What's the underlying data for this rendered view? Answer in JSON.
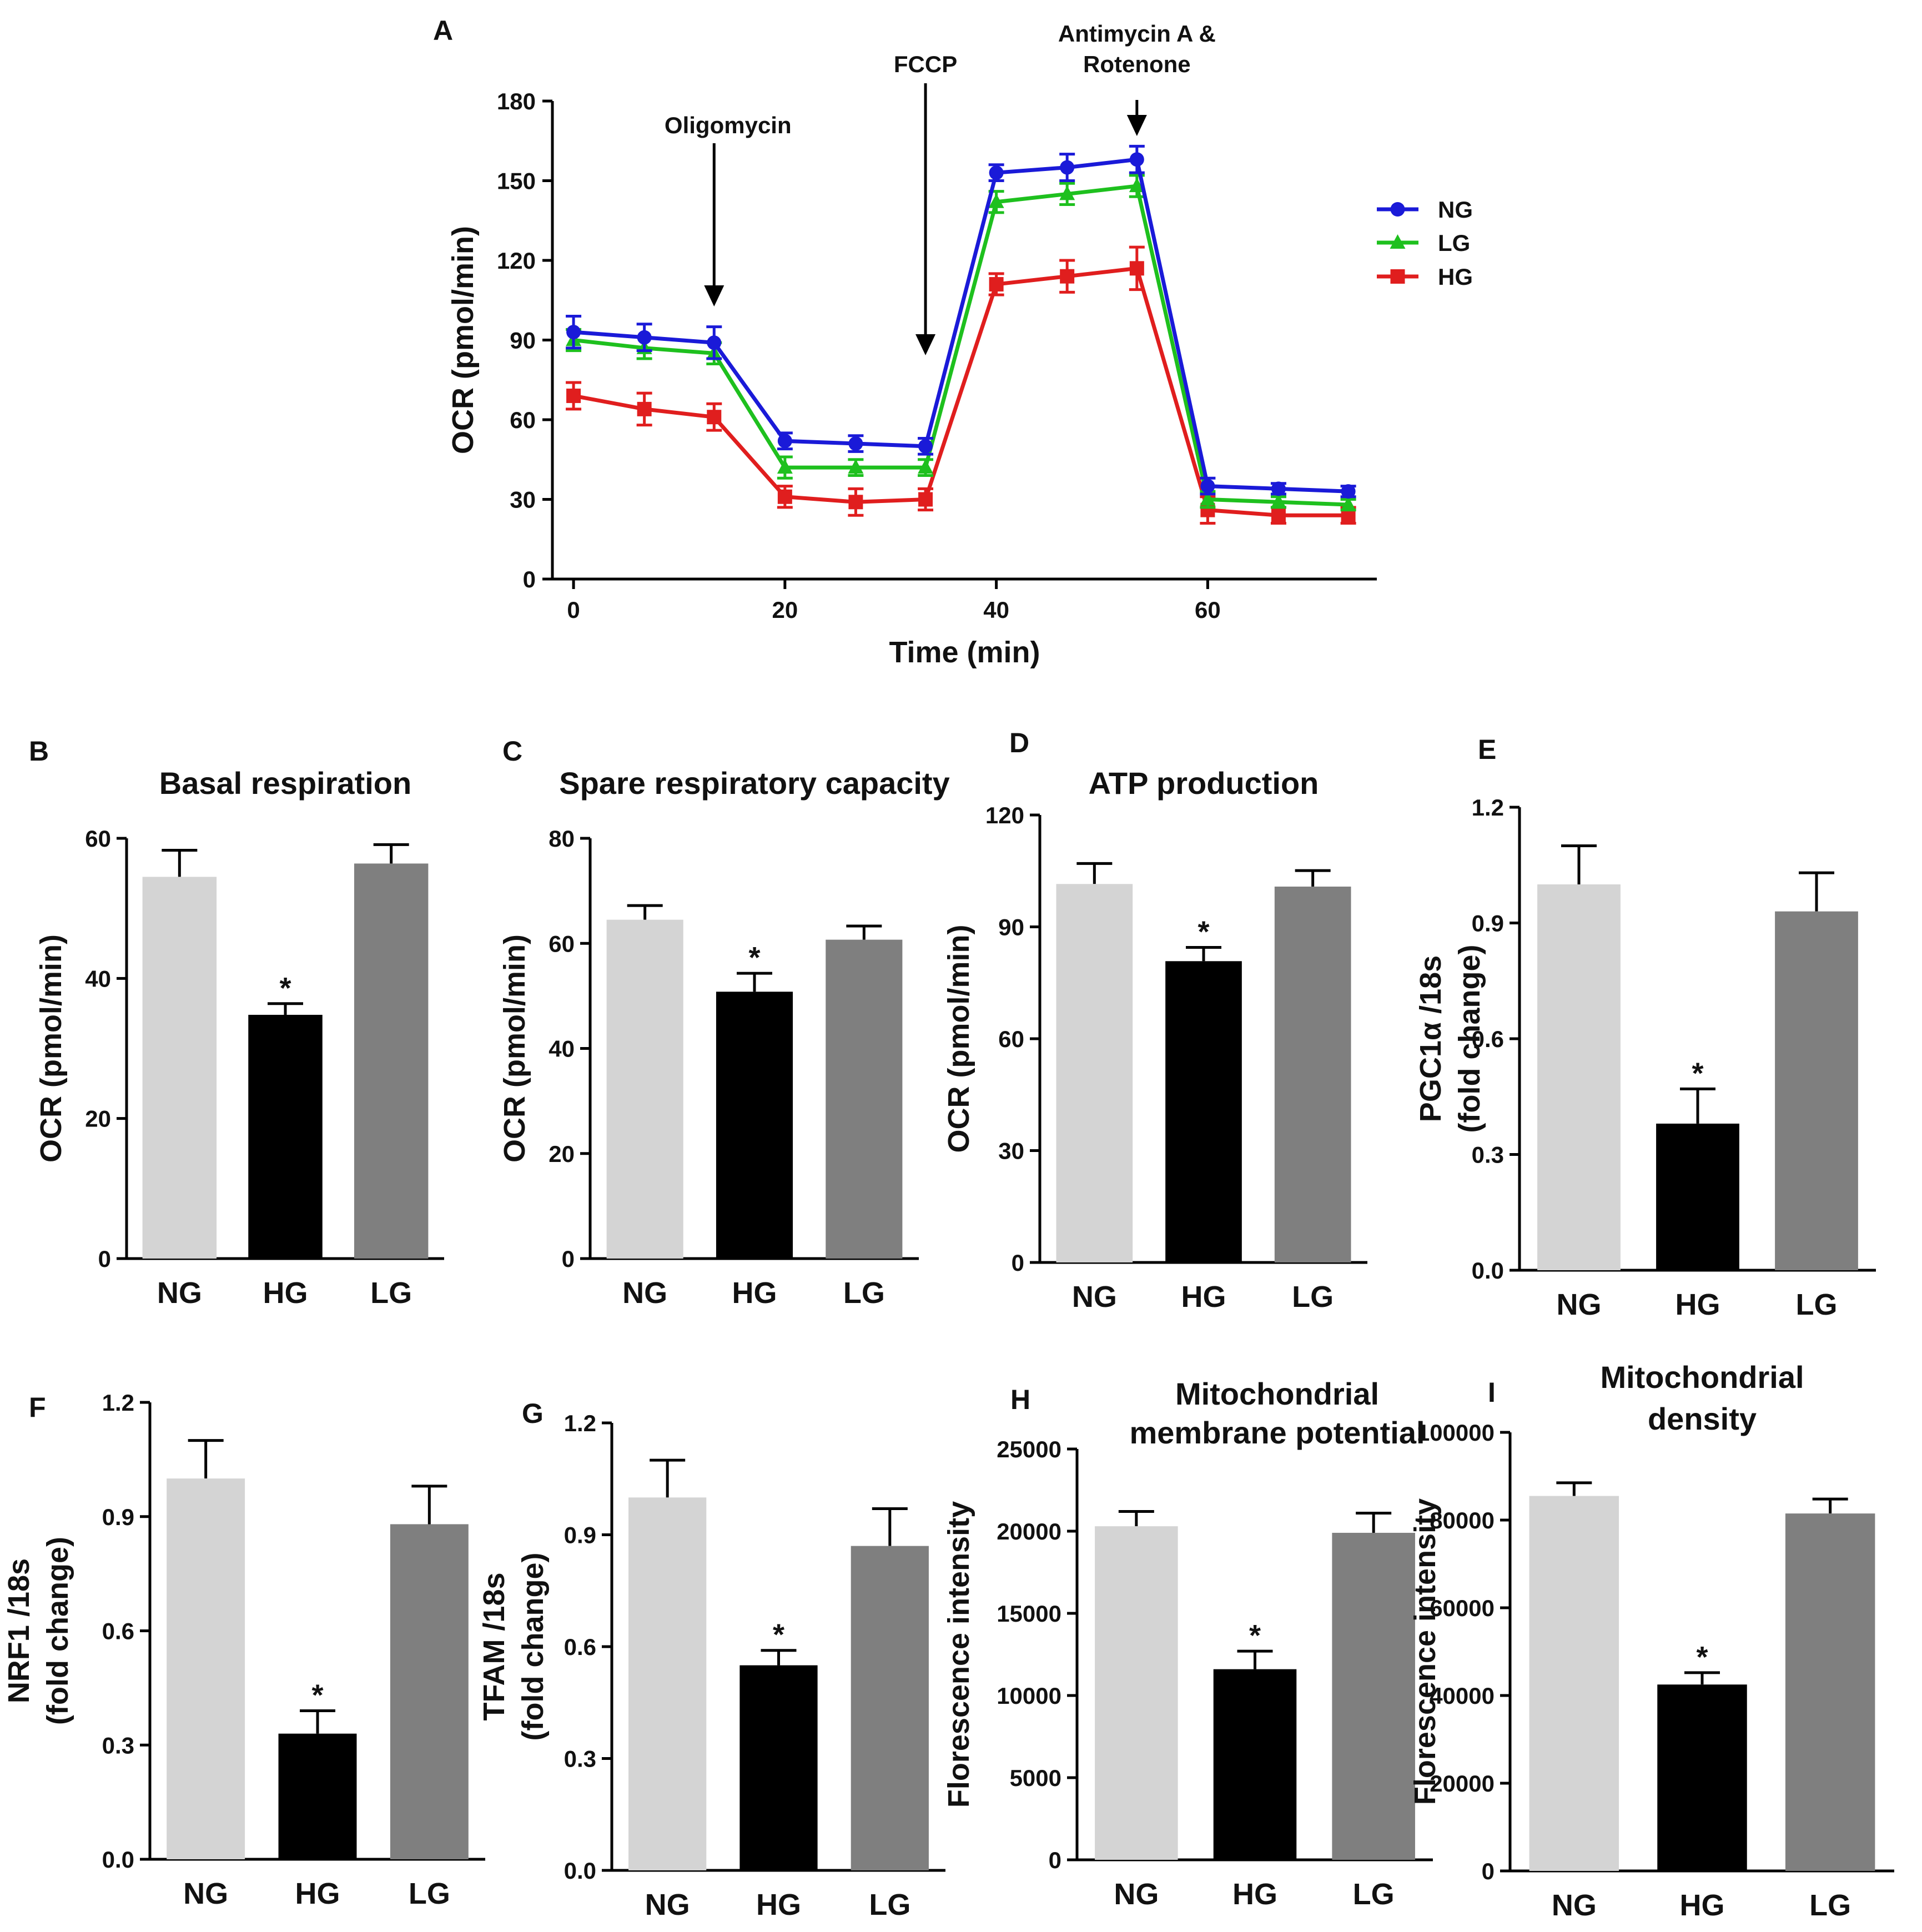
{
  "chart_data": [
    {
      "id": "A",
      "panel_label": "A",
      "type": "line",
      "title": "",
      "xlabel": "Time (min)",
      "ylabel": "OCR (pmol/min)",
      "xlim": [
        -2,
        76
      ],
      "ylim": [
        0,
        180
      ],
      "xticks": [
        0,
        20,
        40,
        60
      ],
      "yticks": [
        0,
        30,
        60,
        90,
        120,
        150,
        180
      ],
      "x": [
        0,
        6.7,
        13.3,
        20,
        26.7,
        33.3,
        40,
        46.7,
        53.3,
        60,
        66.7,
        73.3
      ],
      "series": [
        {
          "name": "NG",
          "color": "#1a1ad8",
          "marker": "circle",
          "values": [
            93,
            91,
            89,
            52,
            51,
            50,
            153,
            155,
            158,
            35,
            34,
            33
          ],
          "errors": [
            6,
            5,
            6,
            3,
            3,
            3,
            3,
            5,
            5,
            3,
            2,
            2
          ]
        },
        {
          "name": "LG",
          "color": "#1ec01e",
          "marker": "triangle",
          "values": [
            90,
            87,
            85,
            42,
            42,
            42,
            142,
            145,
            148,
            30,
            29,
            28
          ],
          "errors": [
            4,
            4,
            4,
            4,
            3,
            3,
            4,
            4,
            4,
            3,
            2,
            2
          ]
        },
        {
          "name": "HG",
          "color": "#e01e1e",
          "marker": "square",
          "values": [
            69,
            64,
            61,
            31,
            29,
            30,
            111,
            114,
            117,
            26,
            24,
            24
          ],
          "errors": [
            5,
            6,
            5,
            4,
            5,
            4,
            4,
            6,
            8,
            5,
            3,
            3
          ]
        }
      ],
      "annotations": [
        {
          "text": "Oligomycin",
          "x": 13.3
        },
        {
          "text": "FCCP",
          "x": 33.3
        },
        {
          "text": "Antimycin A &",
          "text2": "Rotenone",
          "x": 53.3
        }
      ]
    },
    {
      "id": "B",
      "panel_label": "B",
      "type": "bar",
      "title": "Basal respiration",
      "title2": "",
      "ylabel": "OCR (pmol/min)",
      "ylabel2": "",
      "categories": [
        "NG",
        "HG",
        "LG"
      ],
      "values": [
        54.5,
        34.8,
        56.4
      ],
      "errors": [
        3.8,
        1.6,
        2.7
      ],
      "significant": [
        false,
        true,
        false
      ],
      "ylim": [
        0,
        60
      ],
      "yticks": [
        0,
        20,
        40,
        60
      ]
    },
    {
      "id": "C",
      "panel_label": "C",
      "type": "bar",
      "title": "Spare respiratory capacity",
      "title2": "",
      "ylabel": "OCR (pmol/min)",
      "ylabel2": "",
      "categories": [
        "NG",
        "HG",
        "LG"
      ],
      "values": [
        64.5,
        50.8,
        60.7
      ],
      "errors": [
        2.7,
        3.5,
        2.6
      ],
      "significant": [
        false,
        true,
        false
      ],
      "ylim": [
        0,
        80
      ],
      "yticks": [
        0,
        20,
        40,
        60,
        80
      ]
    },
    {
      "id": "D",
      "panel_label": "D",
      "type": "bar",
      "title": "ATP production",
      "title2": "",
      "ylabel": "OCR (pmol/min)",
      "ylabel2": "",
      "categories": [
        "NG",
        "HG",
        "LG"
      ],
      "values": [
        101.5,
        80.8,
        100.8
      ],
      "errors": [
        5.5,
        3.7,
        4.3
      ],
      "significant": [
        false,
        true,
        false
      ],
      "ylim": [
        0,
        120
      ],
      "yticks": [
        0,
        30,
        60,
        90,
        120
      ]
    },
    {
      "id": "E",
      "panel_label": "E",
      "type": "bar",
      "title": "",
      "title2": "",
      "ylabel": "PGC1α /18s",
      "ylabel2": "(fold change)",
      "categories": [
        "NG",
        "HG",
        "LG"
      ],
      "values": [
        1.0,
        0.38,
        0.93
      ],
      "errors": [
        0.1,
        0.09,
        0.1
      ],
      "significant": [
        false,
        true,
        false
      ],
      "ylim": [
        0,
        1.2
      ],
      "yticks": [
        "0.0",
        "0.3",
        "0.6",
        "0.9",
        "1.2"
      ]
    },
    {
      "id": "F",
      "panel_label": "F",
      "type": "bar",
      "title": "",
      "title2": "",
      "ylabel": "NRF1 /18s",
      "ylabel2": "(fold change)",
      "categories": [
        "NG",
        "HG",
        "LG"
      ],
      "values": [
        1.0,
        0.33,
        0.88
      ],
      "errors": [
        0.1,
        0.06,
        0.1
      ],
      "significant": [
        false,
        true,
        false
      ],
      "ylim": [
        0,
        1.2
      ],
      "yticks": [
        "0.0",
        "0.3",
        "0.6",
        "0.9",
        "1.2"
      ]
    },
    {
      "id": "G",
      "panel_label": "G",
      "type": "bar",
      "title": "",
      "title2": "",
      "ylabel": "TFAM /18s",
      "ylabel2": "(fold change)",
      "categories": [
        "NG",
        "HG",
        "LG"
      ],
      "values": [
        1.0,
        0.55,
        0.87
      ],
      "errors": [
        0.1,
        0.04,
        0.1
      ],
      "significant": [
        false,
        true,
        false
      ],
      "ylim": [
        0,
        1.2
      ],
      "yticks": [
        "0.0",
        "0.3",
        "0.6",
        "0.9",
        "1.2"
      ]
    },
    {
      "id": "H",
      "panel_label": "H",
      "type": "bar",
      "title": "Mitochondrial",
      "title2": "membrane potential",
      "ylabel": "Florescence intensity",
      "ylabel2": "",
      "categories": [
        "NG",
        "HG",
        "LG"
      ],
      "values": [
        20300,
        11600,
        19900
      ],
      "errors": [
        900,
        1100,
        1200
      ],
      "significant": [
        false,
        true,
        false
      ],
      "ylim": [
        0,
        25000
      ],
      "yticks": [
        0,
        5000,
        10000,
        15000,
        20000,
        25000
      ]
    },
    {
      "id": "I",
      "panel_label": "I",
      "type": "bar",
      "title": "Mitochondrial",
      "title2": "density",
      "ylabel": "Florescence intensity",
      "ylabel2": "",
      "categories": [
        "NG",
        "HG",
        "LG"
      ],
      "values": [
        85500,
        42500,
        81500
      ],
      "errors": [
        3000,
        2700,
        3300
      ],
      "significant": [
        false,
        true,
        false
      ],
      "ylim": [
        0,
        100000
      ],
      "yticks": [
        0,
        20000,
        40000,
        60000,
        80000,
        100000
      ]
    }
  ],
  "bar_colors": [
    "#d4d4d4",
    "#000000",
    "#7f7f7f"
  ],
  "significance_marker": "*"
}
